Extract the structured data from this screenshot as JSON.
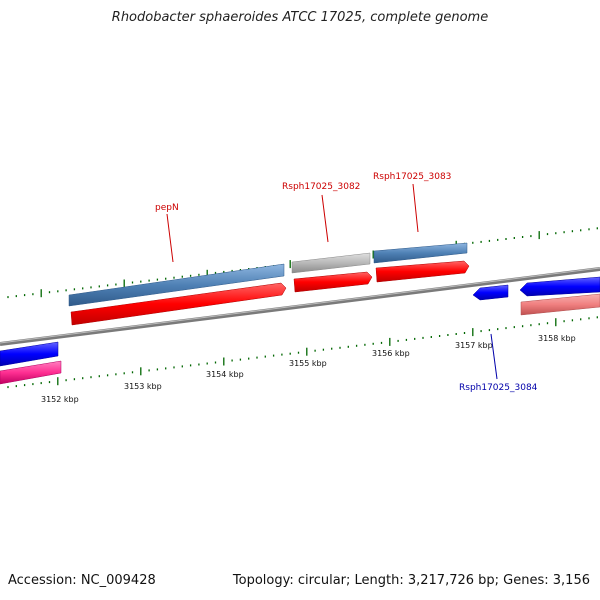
{
  "title": "Rhodobacter sphaeroides ATCC 17025, complete genome",
  "footer": {
    "accession": "Accession: NC_009428",
    "summary": "Topology: circular; Length: 3,217,726 bp; Genes: 3,156"
  },
  "scale": {
    "ticks": [
      "3152 kbp",
      "3153 kbp",
      "3154 kbp",
      "3155 kbp",
      "3156 kbp",
      "3157 kbp",
      "3158 kbp"
    ]
  },
  "genes": [
    {
      "name": "pepN",
      "strand": "forward",
      "color": "#cc0000"
    },
    {
      "name": "Rsph17025_3082",
      "strand": "forward",
      "color": "#cc0000"
    },
    {
      "name": "Rsph17025_3083",
      "strand": "forward",
      "color": "#cc0000"
    },
    {
      "name": "Rsph17025_3084",
      "strand": "reverse",
      "color": "#0000aa"
    }
  ],
  "colors": {
    "cds_forward": "#ff0000",
    "gene_forward": "#4f81b5",
    "gene_pseudo": "#b8b8b8",
    "cds_reverse": "#0000ff",
    "gene_reverse": "#f08080",
    "gene_reverse_left": "#ff2f92",
    "backbone": "#808080",
    "tick": "#006600"
  }
}
